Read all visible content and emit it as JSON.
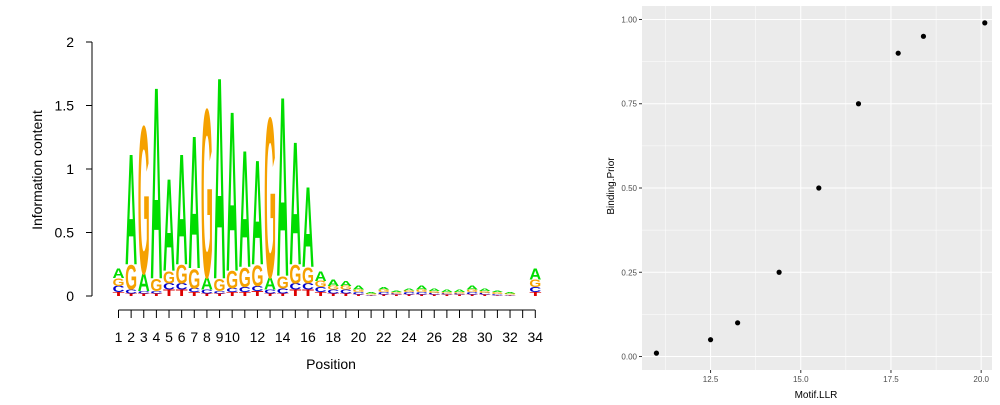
{
  "chart_data": [
    {
      "type": "sequence-logo",
      "ylabel": "Information content",
      "xlabel": "Position",
      "ylim": [
        0,
        2
      ],
      "yticks": [
        "0",
        "0.5",
        "1",
        "1.5",
        "2"
      ],
      "xticks": [
        "1",
        "2",
        "3",
        "4",
        "5",
        "6",
        "7",
        "8",
        "9",
        "10",
        "12",
        "14",
        "16",
        "18",
        "20",
        "22",
        "24",
        "26",
        "28",
        "30",
        "32",
        "34"
      ],
      "positions": 34,
      "letter_colors": {
        "A": "#00dd00",
        "G": "#f5a100",
        "C": "#0000cc",
        "T": "#dd0000"
      },
      "columns": [
        {
          "pos": 1,
          "total": 0.22,
          "stack": [
            [
              "T",
              0.03
            ],
            [
              "C",
              0.05
            ],
            [
              "G",
              0.06
            ],
            [
              "A",
              0.08
            ]
          ]
        },
        {
          "pos": 2,
          "total": 1.15,
          "stack": [
            [
              "T",
              0.02
            ],
            [
              "C",
              0.03
            ],
            [
              "G",
              0.2
            ],
            [
              "A",
              0.9
            ]
          ]
        },
        {
          "pos": 3,
          "total": 1.38,
          "stack": [
            [
              "T",
              0.02
            ],
            [
              "C",
              0.02
            ],
            [
              "A",
              0.14
            ],
            [
              "G",
              1.2
            ]
          ]
        },
        {
          "pos": 4,
          "total": 1.7,
          "stack": [
            [
              "T",
              0.02
            ],
            [
              "C",
              0.02
            ],
            [
              "G",
              0.1
            ],
            [
              "A",
              1.56
            ]
          ]
        },
        {
          "pos": 5,
          "total": 0.95,
          "stack": [
            [
              "T",
              0.05
            ],
            [
              "C",
              0.05
            ],
            [
              "G",
              0.1
            ],
            [
              "A",
              0.75
            ]
          ]
        },
        {
          "pos": 6,
          "total": 1.15,
          "stack": [
            [
              "T",
              0.05
            ],
            [
              "C",
              0.05
            ],
            [
              "G",
              0.15
            ],
            [
              "A",
              0.9
            ]
          ]
        },
        {
          "pos": 7,
          "total": 1.3,
          "stack": [
            [
              "T",
              0.03
            ],
            [
              "C",
              0.03
            ],
            [
              "G",
              0.16
            ],
            [
              "A",
              1.08
            ]
          ]
        },
        {
          "pos": 8,
          "total": 1.52,
          "stack": [
            [
              "T",
              0.02
            ],
            [
              "C",
              0.03
            ],
            [
              "A",
              0.1
            ],
            [
              "G",
              1.37
            ]
          ]
        },
        {
          "pos": 9,
          "total": 1.78,
          "stack": [
            [
              "T",
              0.02
            ],
            [
              "C",
              0.02
            ],
            [
              "G",
              0.1
            ],
            [
              "A",
              1.64
            ]
          ]
        },
        {
          "pos": 10,
          "total": 1.5,
          "stack": [
            [
              "T",
              0.03
            ],
            [
              "C",
              0.03
            ],
            [
              "G",
              0.14
            ],
            [
              "A",
              1.3
            ]
          ]
        },
        {
          "pos": 11,
          "total": 1.18,
          "stack": [
            [
              "T",
              0.03
            ],
            [
              "C",
              0.04
            ],
            [
              "G",
              0.16
            ],
            [
              "A",
              0.95
            ]
          ]
        },
        {
          "pos": 12,
          "total": 1.1,
          "stack": [
            [
              "T",
              0.04
            ],
            [
              "C",
              0.04
            ],
            [
              "G",
              0.17
            ],
            [
              "A",
              0.85
            ]
          ]
        },
        {
          "pos": 13,
          "total": 1.45,
          "stack": [
            [
              "T",
              0.02
            ],
            [
              "C",
              0.03
            ],
            [
              "A",
              0.1
            ],
            [
              "G",
              1.3
            ]
          ]
        },
        {
          "pos": 14,
          "total": 1.62,
          "stack": [
            [
              "T",
              0.02
            ],
            [
              "C",
              0.04
            ],
            [
              "G",
              0.1
            ],
            [
              "A",
              1.46
            ]
          ]
        },
        {
          "pos": 15,
          "total": 1.25,
          "stack": [
            [
              "T",
              0.05
            ],
            [
              "C",
              0.05
            ],
            [
              "G",
              0.15
            ],
            [
              "A",
              1.0
            ]
          ]
        },
        {
          "pos": 16,
          "total": 0.88,
          "stack": [
            [
              "T",
              0.05
            ],
            [
              "C",
              0.05
            ],
            [
              "G",
              0.13
            ],
            [
              "A",
              0.65
            ]
          ]
        },
        {
          "pos": 17,
          "total": 0.2,
          "stack": [
            [
              "T",
              0.03
            ],
            [
              "C",
              0.04
            ],
            [
              "G",
              0.05
            ],
            [
              "A",
              0.08
            ]
          ]
        },
        {
          "pos": 18,
          "total": 0.13,
          "stack": [
            [
              "T",
              0.02
            ],
            [
              "C",
              0.03
            ],
            [
              "G",
              0.03
            ],
            [
              "A",
              0.05
            ]
          ]
        },
        {
          "pos": 19,
          "total": 0.12,
          "stack": [
            [
              "T",
              0.02
            ],
            [
              "C",
              0.03
            ],
            [
              "G",
              0.03
            ],
            [
              "A",
              0.04
            ]
          ]
        },
        {
          "pos": 20,
          "total": 0.08,
          "stack": [
            [
              "T",
              0.01
            ],
            [
              "C",
              0.02
            ],
            [
              "G",
              0.02
            ],
            [
              "A",
              0.03
            ]
          ]
        },
        {
          "pos": 21,
          "total": 0.03,
          "stack": [
            [
              "T",
              0.005
            ],
            [
              "C",
              0.005
            ],
            [
              "G",
              0.01
            ],
            [
              "A",
              0.01
            ]
          ]
        },
        {
          "pos": 22,
          "total": 0.07,
          "stack": [
            [
              "T",
              0.01
            ],
            [
              "C",
              0.02
            ],
            [
              "G",
              0.02
            ],
            [
              "A",
              0.02
            ]
          ]
        },
        {
          "pos": 23,
          "total": 0.04,
          "stack": [
            [
              "T",
              0.01
            ],
            [
              "C",
              0.01
            ],
            [
              "G",
              0.01
            ],
            [
              "A",
              0.01
            ]
          ]
        },
        {
          "pos": 24,
          "total": 0.06,
          "stack": [
            [
              "T",
              0.01
            ],
            [
              "C",
              0.02
            ],
            [
              "G",
              0.015
            ],
            [
              "A",
              0.015
            ]
          ]
        },
        {
          "pos": 25,
          "total": 0.08,
          "stack": [
            [
              "T",
              0.01
            ],
            [
              "C",
              0.02
            ],
            [
              "G",
              0.02
            ],
            [
              "A",
              0.03
            ]
          ]
        },
        {
          "pos": 26,
          "total": 0.06,
          "stack": [
            [
              "T",
              0.01
            ],
            [
              "C",
              0.015
            ],
            [
              "G",
              0.015
            ],
            [
              "A",
              0.02
            ]
          ]
        },
        {
          "pos": 27,
          "total": 0.05,
          "stack": [
            [
              "T",
              0.01
            ],
            [
              "C",
              0.01
            ],
            [
              "G",
              0.01
            ],
            [
              "A",
              0.02
            ]
          ]
        },
        {
          "pos": 28,
          "total": 0.05,
          "stack": [
            [
              "T",
              0.01
            ],
            [
              "C",
              0.01
            ],
            [
              "G",
              0.01
            ],
            [
              "A",
              0.02
            ]
          ]
        },
        {
          "pos": 29,
          "total": 0.08,
          "stack": [
            [
              "T",
              0.01
            ],
            [
              "C",
              0.02
            ],
            [
              "G",
              0.02
            ],
            [
              "A",
              0.03
            ]
          ]
        },
        {
          "pos": 30,
          "total": 0.06,
          "stack": [
            [
              "T",
              0.01
            ],
            [
              "C",
              0.015
            ],
            [
              "G",
              0.015
            ],
            [
              "A",
              0.02
            ]
          ]
        },
        {
          "pos": 31,
          "total": 0.04,
          "stack": [
            [
              "T",
              0.005
            ],
            [
              "C",
              0.01
            ],
            [
              "G",
              0.015
            ],
            [
              "A",
              0.01
            ]
          ]
        },
        {
          "pos": 32,
          "total": 0.03,
          "stack": [
            [
              "T",
              0.005
            ],
            [
              "C",
              0.005
            ],
            [
              "G",
              0.01
            ],
            [
              "A",
              0.01
            ]
          ]
        },
        {
          "pos": 33,
          "total": 0.0,
          "stack": []
        },
        {
          "pos": 34,
          "total": 0.22,
          "stack": [
            [
              "T",
              0.03
            ],
            [
              "C",
              0.04
            ],
            [
              "G",
              0.06
            ],
            [
              "A",
              0.09
            ]
          ]
        }
      ]
    },
    {
      "type": "scatter",
      "xlabel": "Motif.LLR",
      "ylabel": "Binding.Prior",
      "xlim": [
        10.6,
        20.3
      ],
      "ylim": [
        -0.04,
        1.04
      ],
      "xticks": [
        12.5,
        15.0,
        17.5,
        20.0
      ],
      "xtick_labels": [
        "12.5",
        "15.0",
        "17.5",
        "20.0"
      ],
      "yticks": [
        0.0,
        0.25,
        0.5,
        0.75,
        1.0
      ],
      "ytick_labels": [
        "0.00",
        "0.25",
        "0.50",
        "0.75",
        "1.00"
      ],
      "grid": true,
      "panel_background": "#ebebeb",
      "grid_color": "#ffffff",
      "point_color": "#000000",
      "x": [
        11.0,
        12.5,
        13.25,
        14.4,
        15.5,
        16.6,
        17.7,
        18.4,
        20.1
      ],
      "y": [
        0.01,
        0.05,
        0.1,
        0.25,
        0.5,
        0.75,
        0.9,
        0.95,
        0.99
      ]
    }
  ]
}
